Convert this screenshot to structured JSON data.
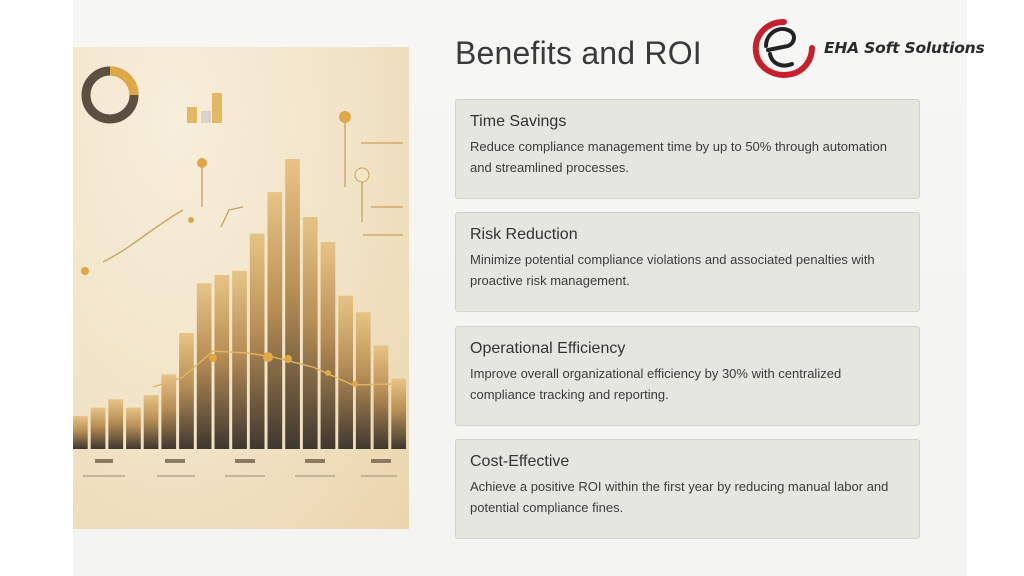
{
  "slide": {
    "title": "Benefits and ROI",
    "logo": {
      "text": "EHA Soft Solutions",
      "mark": "e"
    },
    "benefits": [
      {
        "title": "Time Savings",
        "description": "Reduce compliance management time by up to 50% through automation and streamlined processes."
      },
      {
        "title": "Risk Reduction",
        "description": "Minimize potential compliance violations and associated penalties with proactive risk management."
      },
      {
        "title": "Operational Efficiency",
        "description": "Improve overall organizational efficiency by 30% with centralized compliance tracking and reporting."
      },
      {
        "title": "Cost-Effective",
        "description": "Achieve a positive ROI within the first year by reducing manual labor and potential compliance fines."
      }
    ],
    "illustration": {
      "icon": "bar-chart-illustration",
      "bar_values": [
        8,
        10,
        12,
        10,
        13,
        18,
        28,
        40,
        42,
        43,
        52,
        62,
        70,
        56,
        50,
        37,
        33,
        25,
        17
      ]
    },
    "colors": {
      "background": "#f4f4f2",
      "card": "#e6e6e1",
      "logo_red": "#c8202a",
      "gold": "#d9a645"
    }
  }
}
